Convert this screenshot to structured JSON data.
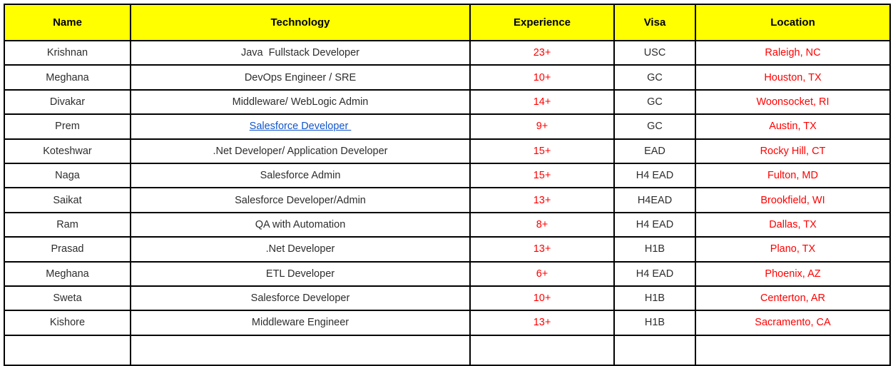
{
  "table": {
    "columns": [
      {
        "key": "name",
        "label": "Name"
      },
      {
        "key": "technology",
        "label": "Technology"
      },
      {
        "key": "experience",
        "label": "Experience"
      },
      {
        "key": "visa",
        "label": "Visa"
      },
      {
        "key": "location",
        "label": "Location"
      }
    ],
    "rows": [
      {
        "name": "Krishnan",
        "technology": "Java  Fullstack Developer",
        "tech_is_link": false,
        "experience": "23+",
        "visa": "USC",
        "location": "Raleigh, NC"
      },
      {
        "name": "Meghana",
        "technology": "DevOps Engineer / SRE",
        "tech_is_link": false,
        "experience": "10+",
        "visa": "GC",
        "location": "Houston, TX"
      },
      {
        "name": "Divakar",
        "technology": "Middleware/ WebLogic Admin",
        "tech_is_link": false,
        "experience": "14+",
        "visa": "GC",
        "location": "Woonsocket, RI"
      },
      {
        "name": "Prem",
        "technology": "Salesforce Developer ",
        "tech_is_link": true,
        "experience": "9+",
        "visa": "GC",
        "location": "Austin, TX"
      },
      {
        "name": "Koteshwar",
        "technology": ".Net Developer/ Application Developer",
        "tech_is_link": false,
        "experience": "15+",
        "visa": "EAD",
        "location": "Rocky Hill, CT"
      },
      {
        "name": "Naga",
        "technology": "Salesforce Admin",
        "tech_is_link": false,
        "experience": "15+",
        "visa": "H4 EAD",
        "location": "Fulton, MD"
      },
      {
        "name": "Saikat",
        "technology": "Salesforce Developer/Admin",
        "tech_is_link": false,
        "experience": "13+",
        "visa": "H4EAD",
        "location": "Brookfield, WI"
      },
      {
        "name": "Ram",
        "technology": "QA with Automation",
        "tech_is_link": false,
        "experience": "8+",
        "visa": "H4 EAD",
        "location": "Dallas, TX"
      },
      {
        "name": "Prasad",
        "technology": ".Net Developer",
        "tech_is_link": false,
        "experience": "13+",
        "visa": "H1B",
        "location": "Plano, TX"
      },
      {
        "name": "Meghana",
        "technology": "ETL Developer",
        "tech_is_link": false,
        "experience": "6+",
        "visa": "H4 EAD",
        "location": "Phoenix, AZ"
      },
      {
        "name": "Sweta",
        "technology": "Salesforce Developer",
        "tech_is_link": false,
        "experience": "10+",
        "visa": "H1B",
        "location": "Centerton, AR"
      },
      {
        "name": "Kishore",
        "technology": "Middleware Engineer",
        "tech_is_link": false,
        "experience": "13+",
        "visa": "H1B",
        "location": "Sacramento, CA"
      }
    ],
    "colors": {
      "header_bg": "#ffff00",
      "header_text": "#000000",
      "body_text": "#2d2d2d",
      "experience_text": "#ff0000",
      "location_text": "#ff0000",
      "link_text": "#1155cc",
      "border": "#000000"
    }
  }
}
